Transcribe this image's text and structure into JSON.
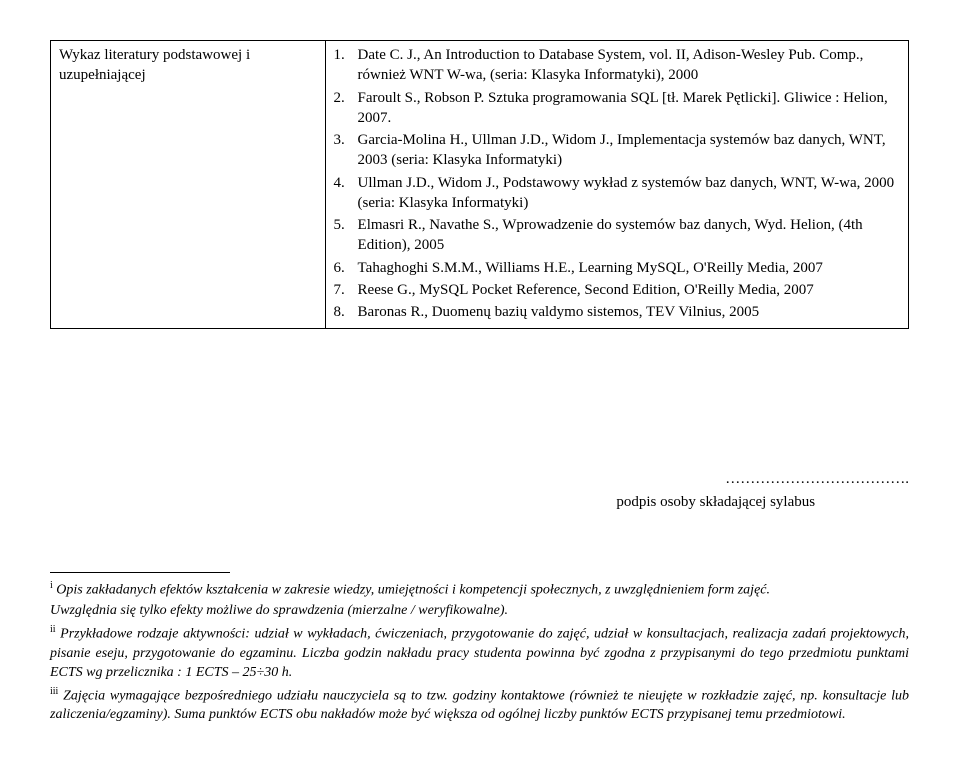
{
  "table": {
    "leftHeading": "Wykaz literatury podstawowej i uzupełniającej",
    "items": [
      "Date C. J., An Introduction to Database System, vol. II, Adison-Wesley Pub. Comp., również WNT W-wa, (seria: Klasyka Informatyki), 2000",
      "Faroult S., Robson P. Sztuka programowania SQL [tł. Marek Pętlicki]. Gliwice : Helion, 2007.",
      "Garcia-Molina H., Ullman J.D., Widom J., Implementacja systemów baz danych, WNT, 2003 (seria: Klasyka Informatyki)",
      "Ullman J.D., Widom J., Podstawowy wykład z systemów baz danych, WNT, W-wa, 2000 (seria: Klasyka Informatyki)",
      "Elmasri R., Navathe S., Wprowadzenie do systemów baz danych, Wyd. Helion, (4th Edition), 2005",
      "Tahaghoghi S.M.M., Williams H.E., Learning MySQL, O'Reilly Media, 2007",
      "Reese G., MySQL Pocket Reference, Second Edition, O'Reilly Media, 2007",
      "Baronas R., Duomenų bazių valdymo sistemos, TEV Vilnius, 2005"
    ]
  },
  "dots": "……………………………….",
  "signatureCaption": "podpis osoby składającej sylabus",
  "footnotes": {
    "i": {
      "line1": "Opis zakładanych efektów kształcenia w zakresie wiedzy, umiejętności i kompetencji społecznych, z uwzględnieniem form zajęć.",
      "line2": "Uwzględnia się tylko efekty możliwe do sprawdzenia (mierzalne / weryfikowalne)."
    },
    "ii": {
      "part1": "Przykładowe rodzaje aktywności: udział w wykładach, ćwiczeniach, przygotowanie do zajęć, udział w konsultacjach, realizacja zadań projektowych, pisanie eseju, przygotowanie do egzaminu. Liczba godzin nakładu pracy studenta powinna być zgodna z przypisanymi do tego przedmiotu punktami ECTS wg przelicznika : 1 ECTS – 25÷30 h."
    },
    "iii": {
      "part1": "Zajęcia wymagające bezpośredniego udziału nauczyciela są to tzw. godziny kontaktowe (również te nieujęte w rozkładzie zajęć, np. konsultacje lub zaliczenia/egzaminy). Suma punktów ECTS obu nakładów może być większa od ogólnej liczby punktów ECTS przypisanej temu przedmiotowi."
    }
  }
}
